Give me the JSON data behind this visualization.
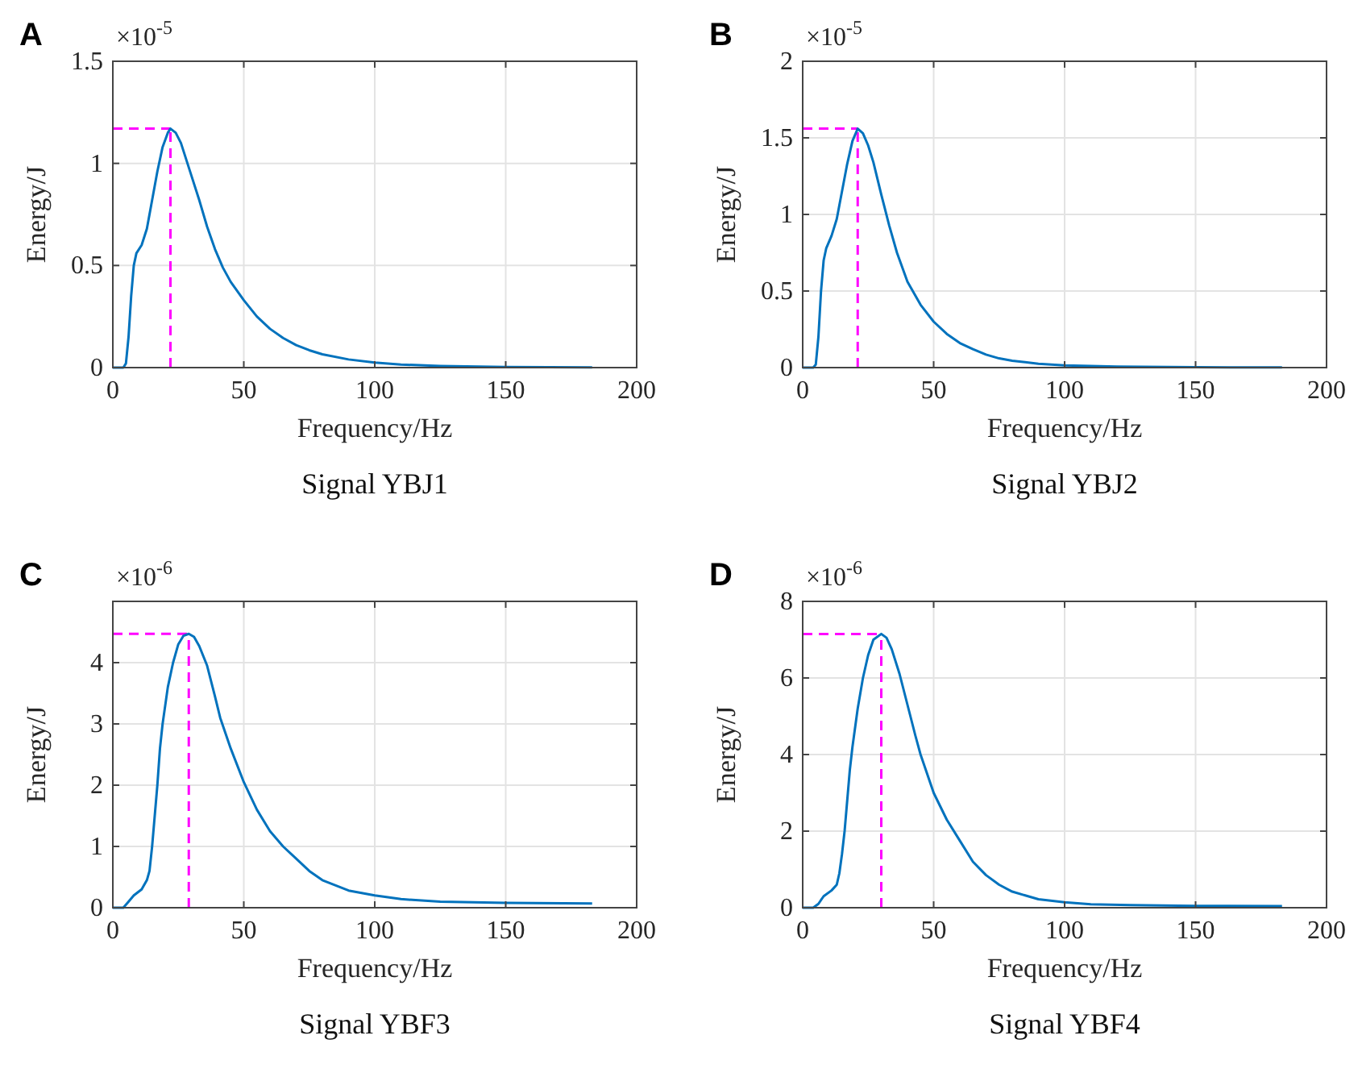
{
  "chart_data": [
    {
      "type": "line",
      "title": "A",
      "xlabel": "Frequency/Hz",
      "ylabel": "Energy/J",
      "annotations": [
        "×10$^{-5}$",
        "Signal YBJ1"
      ],
      "xlim": [
        0,
        200
      ],
      "xticks": [
        0,
        50,
        100,
        150,
        200
      ],
      "ylim": [
        0,
        1.5
      ],
      "yticks": [
        0,
        0.5,
        1,
        1.5
      ],
      "grid": true,
      "line_style": "solid",
      "ref_lines": [
        {
          "axis": "x",
          "value": 22,
          "color": "#ff00ff",
          "line_style": "dashed"
        },
        {
          "axis": "y",
          "value": 1.17,
          "color": "#ff00ff",
          "line_style": "dashed"
        }
      ],
      "series": [
        {
          "color": "#0072bd",
          "x": [
            0,
            4,
            5,
            6,
            7,
            8,
            9,
            11,
            13,
            15,
            17,
            19,
            21,
            22,
            24,
            26,
            28,
            30,
            33,
            36,
            39,
            42,
            45,
            50,
            55,
            60,
            65,
            70,
            75,
            80,
            90,
            100,
            110,
            125,
            150,
            183
          ],
          "values": [
            0,
            0,
            0.02,
            0.15,
            0.35,
            0.5,
            0.56,
            0.6,
            0.68,
            0.82,
            0.96,
            1.08,
            1.15,
            1.17,
            1.15,
            1.1,
            1.02,
            0.94,
            0.82,
            0.69,
            0.58,
            0.49,
            0.42,
            0.33,
            0.25,
            0.19,
            0.145,
            0.11,
            0.085,
            0.065,
            0.04,
            0.025,
            0.015,
            0.008,
            0.003,
            0.001
          ]
        }
      ]
    },
    {
      "type": "line",
      "title": "B",
      "xlabel": "Frequency/Hz",
      "ylabel": "Energy/J",
      "annotations": [
        "×10$^{-5}$",
        "Signal YBJ2"
      ],
      "xlim": [
        0,
        200
      ],
      "xticks": [
        0,
        50,
        100,
        150,
        200
      ],
      "ylim": [
        0,
        2
      ],
      "yticks": [
        0,
        0.5,
        1,
        1.5,
        2
      ],
      "grid": true,
      "line_style": "solid",
      "ref_lines": [
        {
          "axis": "x",
          "value": 21,
          "color": "#ff00ff",
          "line_style": "dashed"
        },
        {
          "axis": "y",
          "value": 1.56,
          "color": "#ff00ff",
          "line_style": "dashed"
        }
      ],
      "series": [
        {
          "color": "#0072bd",
          "x": [
            0,
            4,
            5,
            6,
            7,
            8,
            9,
            11,
            13,
            15,
            17,
            19,
            21,
            23,
            25,
            27,
            30,
            33,
            36,
            40,
            45,
            50,
            55,
            60,
            65,
            70,
            75,
            80,
            90,
            100,
            120,
            150,
            183
          ],
          "values": [
            0,
            0,
            0.02,
            0.2,
            0.5,
            0.7,
            0.78,
            0.86,
            0.97,
            1.15,
            1.33,
            1.48,
            1.56,
            1.53,
            1.45,
            1.34,
            1.13,
            0.93,
            0.75,
            0.56,
            0.41,
            0.3,
            0.22,
            0.16,
            0.12,
            0.085,
            0.06,
            0.045,
            0.025,
            0.015,
            0.006,
            0.002,
            0.001
          ]
        }
      ]
    },
    {
      "type": "line",
      "title": "C",
      "xlabel": "Frequency/Hz",
      "ylabel": "Energy/J",
      "annotations": [
        "×10$^{-6}$",
        "Signal YBF3"
      ],
      "xlim": [
        0,
        200
      ],
      "xticks": [
        0,
        50,
        100,
        150,
        200
      ],
      "ylim": [
        0,
        5
      ],
      "yticks": [
        0,
        1,
        2,
        3,
        4
      ],
      "grid": true,
      "line_style": "solid",
      "ref_lines": [
        {
          "axis": "x",
          "value": 29,
          "color": "#ff00ff",
          "line_style": "dashed"
        },
        {
          "axis": "y",
          "value": 4.47,
          "color": "#ff00ff",
          "line_style": "dashed"
        }
      ],
      "series": [
        {
          "color": "#0072bd",
          "x": [
            0,
            4,
            6,
            8,
            11,
            13,
            14,
            15,
            16,
            17,
            18,
            19,
            21,
            23,
            25,
            27,
            29,
            31,
            33,
            36,
            39,
            41,
            45,
            50,
            55,
            60,
            65,
            70,
            75,
            80,
            90,
            100,
            110,
            125,
            150,
            183
          ],
          "values": [
            0,
            0,
            0.1,
            0.2,
            0.3,
            0.45,
            0.6,
            1.0,
            1.5,
            2.0,
            2.6,
            3.0,
            3.6,
            4.0,
            4.3,
            4.44,
            4.47,
            4.42,
            4.27,
            3.95,
            3.45,
            3.1,
            2.6,
            2.05,
            1.6,
            1.25,
            1.0,
            0.8,
            0.6,
            0.45,
            0.28,
            0.2,
            0.14,
            0.1,
            0.08,
            0.07
          ]
        }
      ]
    },
    {
      "type": "line",
      "title": "D",
      "xlabel": "Frequency/Hz",
      "ylabel": "Energy/J",
      "annotations": [
        "×10$^{-6}$",
        "Signal YBF4"
      ],
      "xlim": [
        0,
        200
      ],
      "xticks": [
        0,
        50,
        100,
        150,
        200
      ],
      "ylim": [
        0,
        8
      ],
      "yticks": [
        0,
        2,
        4,
        6,
        8
      ],
      "grid": true,
      "line_style": "solid",
      "ref_lines": [
        {
          "axis": "x",
          "value": 30,
          "color": "#ff00ff",
          "line_style": "dashed"
        },
        {
          "axis": "y",
          "value": 7.15,
          "color": "#ff00ff",
          "line_style": "dashed"
        }
      ],
      "series": [
        {
          "color": "#0072bd",
          "x": [
            0,
            4,
            6,
            8,
            11,
            13,
            14,
            15,
            16,
            17,
            18,
            19,
            21,
            23,
            25,
            27,
            30,
            32,
            34,
            37,
            40,
            43,
            45,
            50,
            55,
            60,
            65,
            70,
            75,
            80,
            90,
            100,
            110,
            125,
            150,
            183
          ],
          "values": [
            0,
            0,
            0.1,
            0.3,
            0.45,
            0.6,
            0.9,
            1.4,
            2.0,
            2.8,
            3.6,
            4.2,
            5.2,
            6.0,
            6.6,
            7.0,
            7.15,
            7.05,
            6.75,
            6.1,
            5.3,
            4.5,
            4.0,
            3.0,
            2.3,
            1.75,
            1.2,
            0.85,
            0.6,
            0.42,
            0.22,
            0.14,
            0.09,
            0.07,
            0.05,
            0.04
          ]
        }
      ]
    }
  ]
}
